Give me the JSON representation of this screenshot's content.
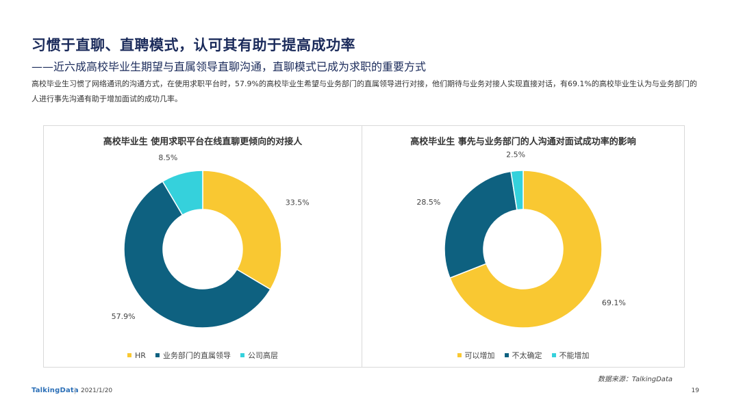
{
  "page": {
    "title": "习惯于直聊、直聘模式，认可其有助于提高成功率",
    "subtitle": "——近六成高校毕业生期望与直属领导直聊沟通，直聊模式已成为求职的重要方式",
    "description": "高校毕业生习惯了网络通讯的沟通方式，在使用求职平台时，57.9%的高校毕业生希望与业务部门的直属领导进行对接，他们期待与业务对接人实现直接对话，有69.1%的高校毕业生认为与业务部门的人进行事先沟通有助于增加面试的成功几率。",
    "source": "数据来源：TalkingData",
    "logo": "TalkingData",
    "date": "2021/1/20",
    "page_number": "19"
  },
  "chart_data": [
    {
      "type": "pie",
      "variant": "donut",
      "title": "高校毕业生  使用求职平台在线直聊更倾向的对接人",
      "categories": [
        "HR",
        "业务部门的直属领导",
        "公司高层"
      ],
      "values": [
        33.5,
        57.9,
        8.5
      ],
      "labels": [
        "33.5%",
        "57.9%",
        "8.5%"
      ],
      "colors": [
        "#f9c832",
        "#0e6180",
        "#35d1dc"
      ],
      "legend": "bottom"
    },
    {
      "type": "pie",
      "variant": "donut",
      "title": "高校毕业生  事先与业务部门的人沟通对面试成功率的影响",
      "categories": [
        "可以增加",
        "不太确定",
        "不能增加"
      ],
      "values": [
        69.1,
        28.5,
        2.5
      ],
      "labels": [
        "69.1%",
        "28.5%",
        "2.5%"
      ],
      "colors": [
        "#f9c832",
        "#0e6180",
        "#35d1dc"
      ],
      "legend": "bottom"
    }
  ]
}
